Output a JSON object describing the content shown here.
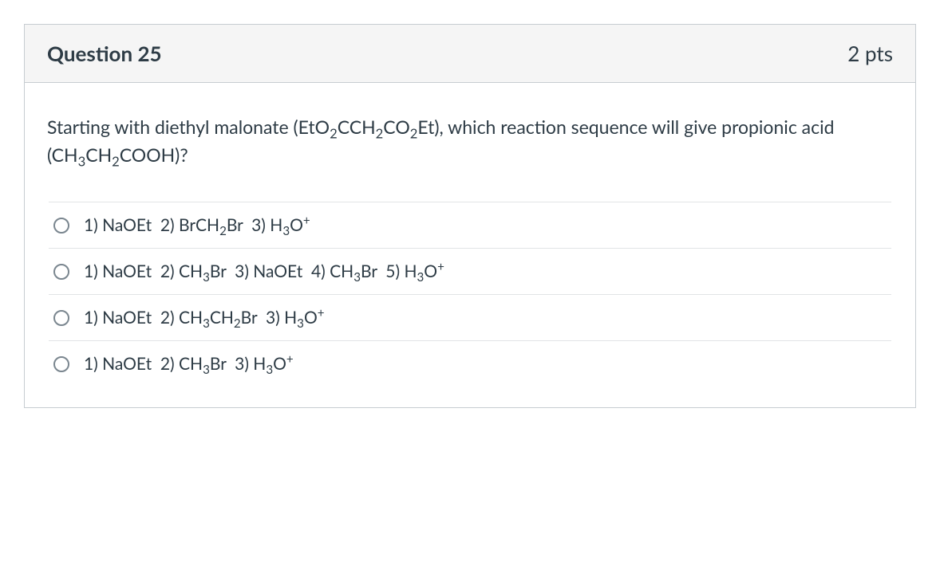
{
  "card": {
    "border_color": "#c7cdd1",
    "header_bg": "#f5f5f5",
    "text_color": "#2d3b45"
  },
  "question": {
    "title": "Question 25",
    "points": "2 pts",
    "prompt_html": "Starting with diethyl malonate (EtO<sub>2</sub>CCH<sub>2</sub>CO<sub>2</sub>Et), which reaction sequence will give propionic acid (CH<sub>3</sub>CH<sub>2</sub>COOH)?"
  },
  "answers": [
    {
      "html": "1) NaOEt&nbsp;&nbsp;2) BrCH<sub>2</sub>Br&nbsp;&nbsp;3) H<sub>3</sub>O<sup>+</sup>"
    },
    {
      "html": "1) NaOEt&nbsp;&nbsp;2) CH<sub>3</sub>Br&nbsp;&nbsp;3) NaOEt&nbsp;&nbsp;4) CH<sub>3</sub>Br&nbsp;&nbsp;5) H<sub>3</sub>O<sup>+</sup>"
    },
    {
      "html": "1) NaOEt&nbsp;&nbsp;2) CH<sub>3</sub>CH<sub>2</sub>Br&nbsp;&nbsp;3) H<sub>3</sub>O<sup>+</sup>"
    },
    {
      "html": "1) NaOEt&nbsp;&nbsp;2) CH<sub>3</sub>Br&nbsp;&nbsp;3) H<sub>3</sub>O<sup>+</sup>"
    }
  ]
}
